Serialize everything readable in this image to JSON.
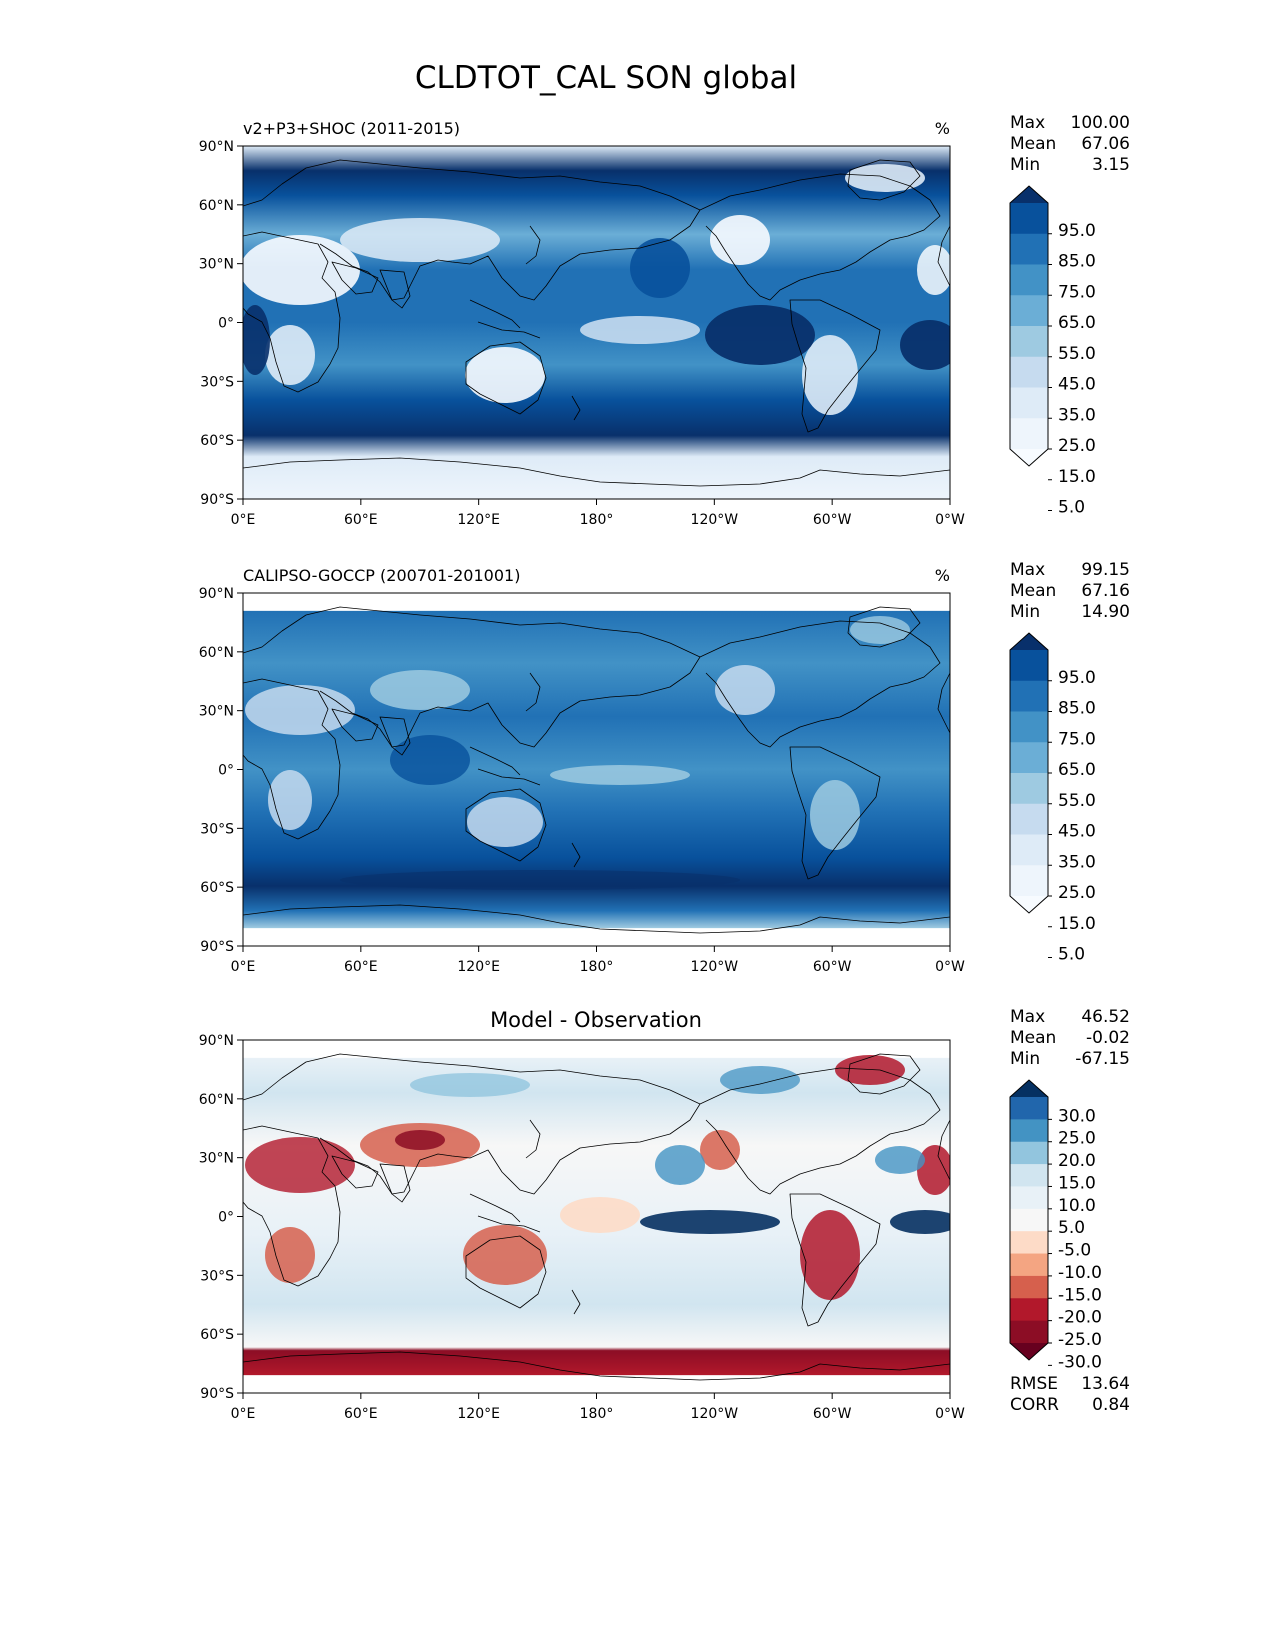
{
  "figure": {
    "title": "CLDTOT_CAL SON global"
  },
  "axes": {
    "lat_ticks": [
      "90°N",
      "60°N",
      "30°N",
      "0°",
      "30°S",
      "60°S",
      "90°S"
    ],
    "lon_ticks": [
      "0°E",
      "60°E",
      "120°E",
      "180°",
      "120°W",
      "60°W",
      "0°W"
    ]
  },
  "panels": [
    {
      "name": "test",
      "title_left": "v2+P3+SHOC (2011-2015)",
      "title_right": "%",
      "stats": [
        {
          "label": "Max",
          "value": "100.00"
        },
        {
          "label": "Mean",
          "value": "67.06"
        },
        {
          "label": "Min",
          "value": "3.15"
        }
      ],
      "colorbar": {
        "labels": [
          "95.0",
          "85.0",
          "75.0",
          "65.0",
          "55.0",
          "45.0",
          "35.0",
          "25.0",
          "15.0",
          "5.0"
        ],
        "colors": [
          "#08306b",
          "#08519c",
          "#2171b5",
          "#4292c6",
          "#6baed6",
          "#9ecae1",
          "#c6dbef",
          "#deebf7",
          "#eef5fc",
          "#f7fbff"
        ]
      }
    },
    {
      "name": "reference",
      "title_left": "CALIPSO-GOCCP (200701-201001)",
      "title_right": "%",
      "stats": [
        {
          "label": "Max",
          "value": "99.15"
        },
        {
          "label": "Mean",
          "value": "67.16"
        },
        {
          "label": "Min",
          "value": "14.90"
        }
      ],
      "colorbar": {
        "labels": [
          "95.0",
          "85.0",
          "75.0",
          "65.0",
          "55.0",
          "45.0",
          "35.0",
          "25.0",
          "15.0",
          "5.0"
        ],
        "colors": [
          "#08306b",
          "#08519c",
          "#2171b5",
          "#4292c6",
          "#6baed6",
          "#9ecae1",
          "#c6dbef",
          "#deebf7",
          "#eef5fc",
          "#f7fbff"
        ]
      }
    },
    {
      "name": "difference",
      "title_center": "Model - Observation",
      "stats": [
        {
          "label": "Max",
          "value": "46.52"
        },
        {
          "label": "Mean",
          "value": "-0.02"
        },
        {
          "label": "Min",
          "value": "-67.15"
        }
      ],
      "colorbar": {
        "labels": [
          "30.0",
          "25.0",
          "20.0",
          "15.0",
          "10.0",
          "5.0",
          "-5.0",
          "-10.0",
          "-15.0",
          "-20.0",
          "-25.0",
          "-30.0"
        ],
        "colors": [
          "#053061",
          "#2166ac",
          "#4393c3",
          "#92c5de",
          "#d1e5f0",
          "#e8f1f7",
          "#f7f7f7",
          "#fddbc7",
          "#f4a582",
          "#d6604d",
          "#b2182b",
          "#8c0d25",
          "#67001f"
        ]
      },
      "extra_stats": [
        {
          "label": "RMSE",
          "value": "13.64"
        },
        {
          "label": "CORR",
          "value": "0.84"
        }
      ]
    }
  ]
}
